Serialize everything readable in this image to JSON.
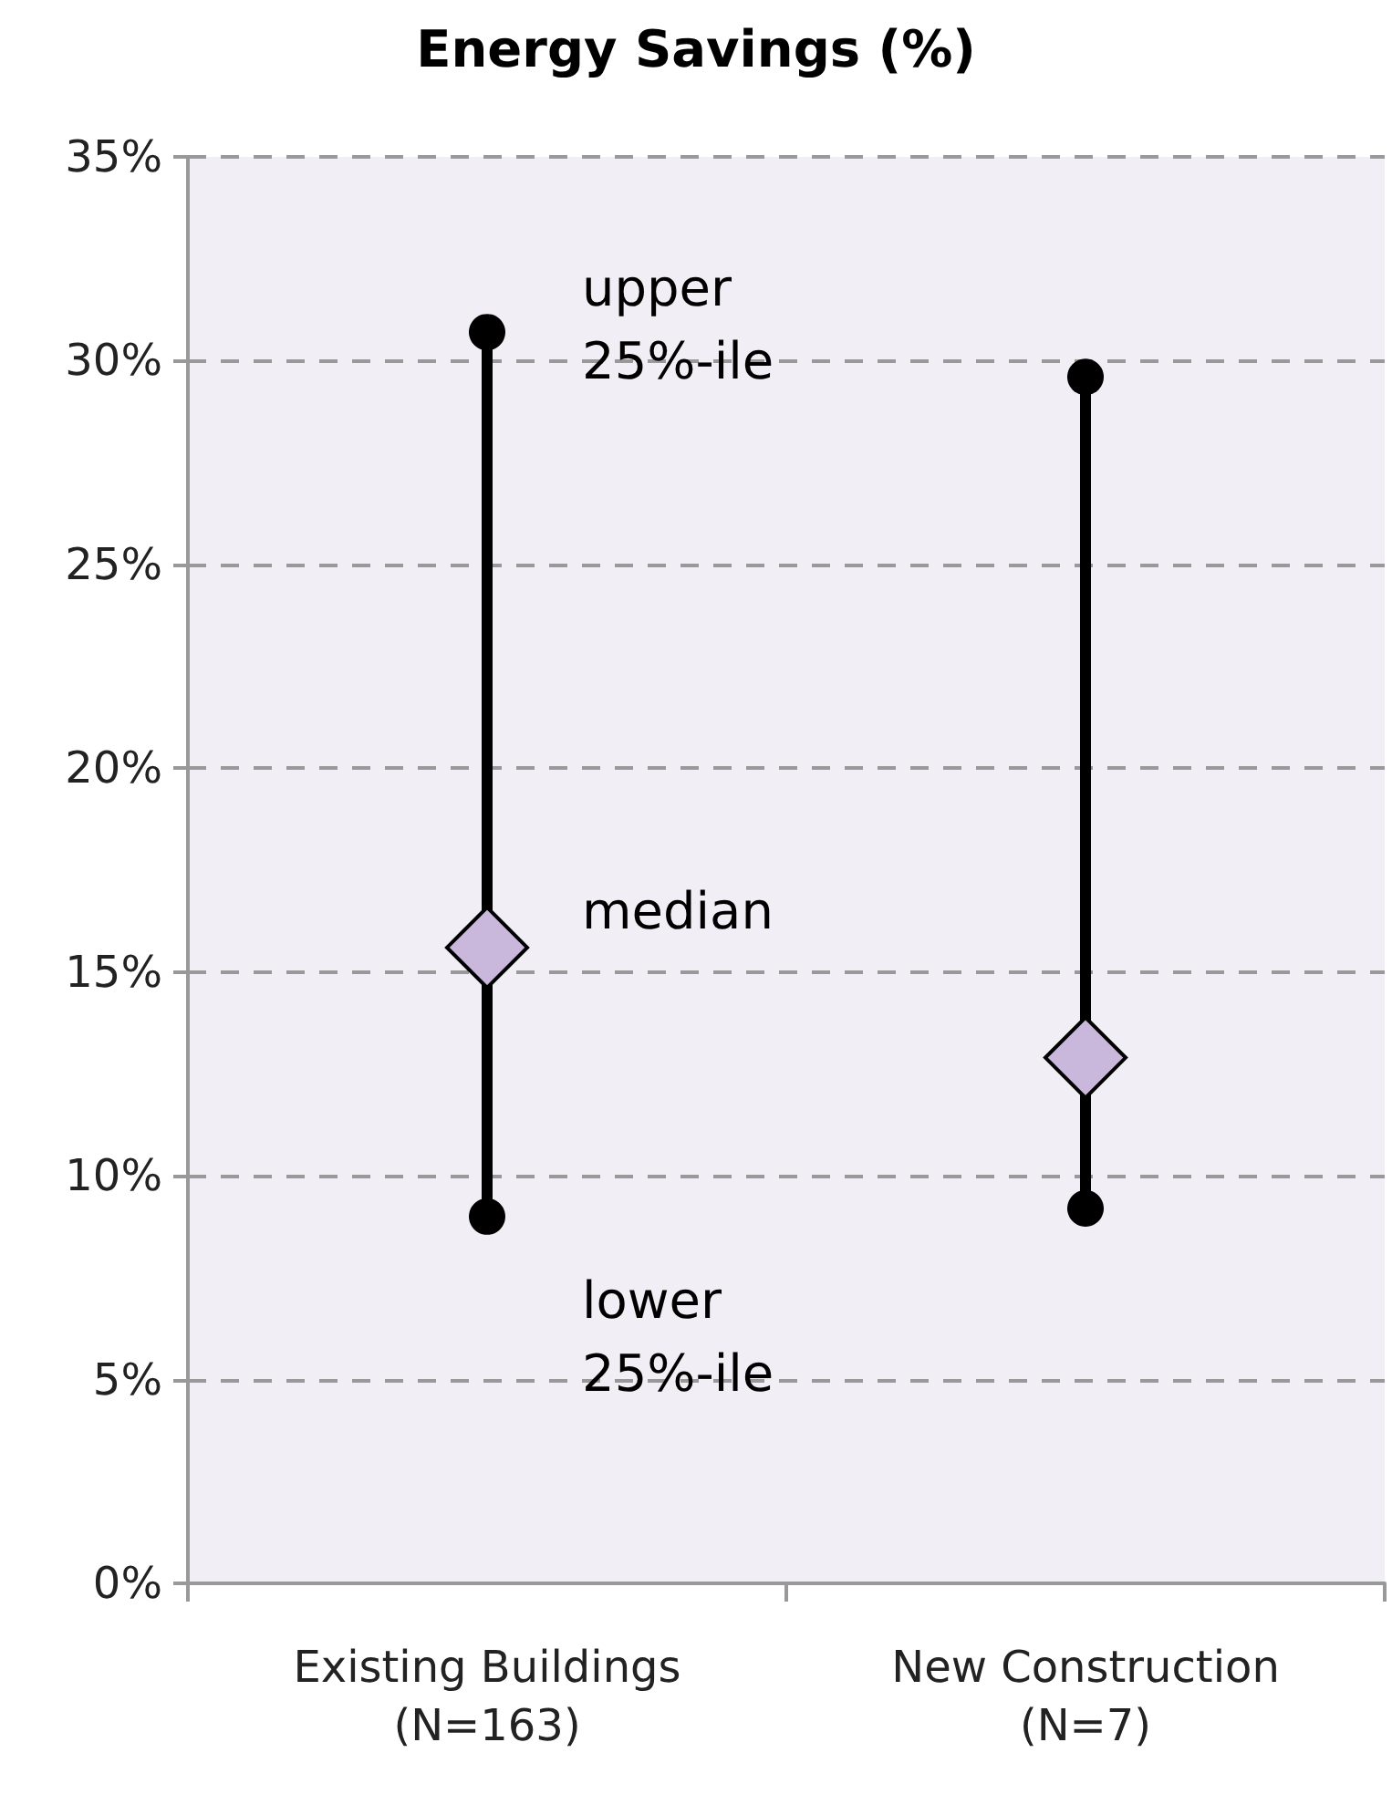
{
  "chart_data": {
    "type": "scatter",
    "title": "Energy Savings (%)",
    "categories": [
      "Existing Buildings\n(N=163)",
      "New Construction\n(N=7)"
    ],
    "series": [
      {
        "type": "line",
        "color": "#000000",
        "x": [
          "Existing Buildings\n(N=163)",
          "Existing Buildings\n(N=163)"
        ],
        "values": [
          9.0,
          30.7
        ],
        "marker": "circle"
      },
      {
        "type": "line",
        "color": "#000000",
        "x": [
          "New Construction\n(N=7)",
          "New Construction\n(N=7)"
        ],
        "values": [
          9.2,
          29.6
        ],
        "marker": "circle"
      },
      {
        "color": "#c9b8dc",
        "x": [
          "Existing Buildings\n(N=163)",
          "New Construction\n(N=7)"
        ],
        "values": [
          15.6,
          12.9
        ],
        "marker": "diamond"
      }
    ],
    "ylim": [
      0,
      35
    ],
    "yticks": [
      {
        "value": 0,
        "label": "0%"
      },
      {
        "value": 5,
        "label": "5%"
      },
      {
        "value": 10,
        "label": "10%"
      },
      {
        "value": 15,
        "label": "15%"
      },
      {
        "value": 20,
        "label": "20%"
      },
      {
        "value": 25,
        "label": "25%"
      },
      {
        "value": 30,
        "label": "30%"
      },
      {
        "value": 35,
        "label": "35%"
      }
    ],
    "grid": "y",
    "annotations": [
      {
        "text": "upper\n25%-ile",
        "x": "Existing Buildings\n(N=163)",
        "y": 30.7
      },
      {
        "text": "median",
        "x": "Existing Buildings\n(N=163)",
        "y": 15.6
      },
      {
        "text": "lower\n25%-ile",
        "x": "Existing Buildings\n(N=163)",
        "y": 9.0
      }
    ]
  }
}
